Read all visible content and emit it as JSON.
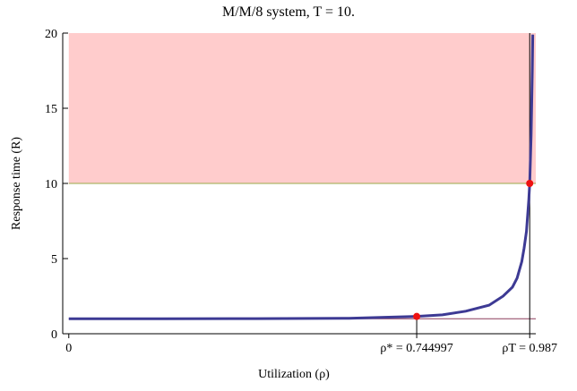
{
  "chart_data": {
    "type": "line",
    "title": "M/M/8 system,  T = 10.",
    "xlabel": "Utilization (ρ)",
    "ylabel": "Response time (R)",
    "xlim": [
      -0.013,
      1.0
    ],
    "ylim": [
      0,
      20
    ],
    "xticks": [
      0,
      {
        "value": 0.744997,
        "label": "ρ* = 0.744997"
      },
      {
        "value": 0.987,
        "label": "ρT = 0.987"
      }
    ],
    "yticks": [
      0,
      5,
      10,
      15,
      20
    ],
    "threshold": 10,
    "threshold_color": "#9aa84a",
    "region_color": "#ffcccc",
    "baseline": 1,
    "baseline_color": "#8b3a5a",
    "series": [
      {
        "color": "#3d3a94",
        "x": [
          0,
          0.2,
          0.4,
          0.6,
          0.745,
          0.8,
          0.85,
          0.9,
          0.93,
          0.95,
          0.96,
          0.97,
          0.975,
          0.98,
          0.985,
          0.987,
          0.99,
          0.9925,
          0.9935
        ],
        "values": [
          1,
          1.0,
          1.003,
          1.03,
          1.15,
          1.26,
          1.5,
          1.9,
          2.5,
          3.1,
          3.7,
          4.8,
          5.7,
          6.8,
          8.9,
          10.0,
          13.2,
          17.5,
          19.9
        ]
      }
    ],
    "points": {
      "color": "#ee1111",
      "x": [
        0.744997,
        0.987
      ],
      "values": [
        1.15,
        10.0
      ]
    }
  }
}
